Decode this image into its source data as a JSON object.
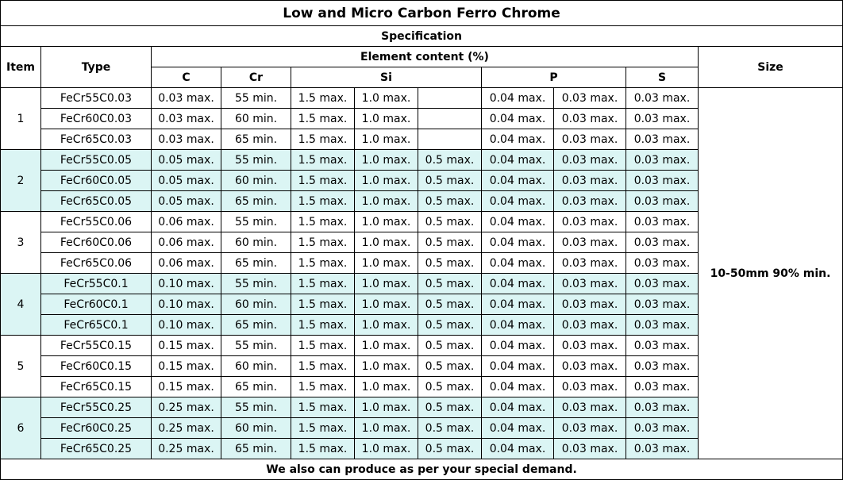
{
  "title": "Low and Micro Carbon Ferro Chrome",
  "specification_label": "Specification",
  "headers": {
    "item": "Item",
    "type": "Type",
    "element_content": "Element content (%)",
    "size": "Size",
    "c": "C",
    "cr": "Cr",
    "si": "Si",
    "p": "P",
    "s": "S"
  },
  "size_value": "10-50mm 90% min.",
  "footer": "We also can produce as per your special demand.",
  "shade_color": "#dbf5f4",
  "groups": [
    {
      "item": "1",
      "shaded": false,
      "rows": [
        {
          "type": "FeCr55C0.03",
          "c": "0.03 max.",
          "cr": "55 min.",
          "si1": "1.5 max.",
          "si2": "1.0 max.",
          "si3": "",
          "p1": "0.04 max.",
          "p2": "0.03 max.",
          "s": "0.03 max."
        },
        {
          "type": "FeCr60C0.03",
          "c": "0.03 max.",
          "cr": "60 min.",
          "si1": "1.5 max.",
          "si2": "1.0 max.",
          "si3": "",
          "p1": "0.04 max.",
          "p2": "0.03 max.",
          "s": "0.03 max."
        },
        {
          "type": "FeCr65C0.03",
          "c": "0.03 max.",
          "cr": "65 min.",
          "si1": "1.5 max.",
          "si2": "1.0 max.",
          "si3": "",
          "p1": "0.04 max.",
          "p2": "0.03 max.",
          "s": "0.03 max."
        }
      ]
    },
    {
      "item": "2",
      "shaded": true,
      "rows": [
        {
          "type": "FeCr55C0.05",
          "c": "0.05 max.",
          "cr": "55 min.",
          "si1": "1.5 max.",
          "si2": "1.0 max.",
          "si3": "0.5 max.",
          "p1": "0.04 max.",
          "p2": "0.03 max.",
          "s": "0.03 max."
        },
        {
          "type": "FeCr60C0.05",
          "c": "0.05 max.",
          "cr": "60 min.",
          "si1": "1.5 max.",
          "si2": "1.0 max.",
          "si3": "0.5 max.",
          "p1": "0.04 max.",
          "p2": "0.03 max.",
          "s": "0.03 max."
        },
        {
          "type": "FeCr65C0.05",
          "c": "0.05 max.",
          "cr": "65 min.",
          "si1": "1.5 max.",
          "si2": "1.0 max.",
          "si3": "0.5 max.",
          "p1": "0.04 max.",
          "p2": "0.03 max.",
          "s": "0.03 max."
        }
      ]
    },
    {
      "item": "3",
      "shaded": false,
      "rows": [
        {
          "type": "FeCr55C0.06",
          "c": "0.06 max.",
          "cr": "55 min.",
          "si1": "1.5 max.",
          "si2": "1.0 max.",
          "si3": "0.5 max.",
          "p1": "0.04 max.",
          "p2": "0.03 max.",
          "s": "0.03 max."
        },
        {
          "type": "FeCr60C0.06",
          "c": "0.06 max.",
          "cr": "60 min.",
          "si1": "1.5 max.",
          "si2": "1.0 max.",
          "si3": "0.5 max.",
          "p1": "0.04 max.",
          "p2": "0.03 max.",
          "s": "0.03 max."
        },
        {
          "type": "FeCr65C0.06",
          "c": "0.06 max.",
          "cr": "65 min.",
          "si1": "1.5 max.",
          "si2": "1.0 max.",
          "si3": "0.5 max.",
          "p1": "0.04 max.",
          "p2": "0.03 max.",
          "s": "0.03 max."
        }
      ]
    },
    {
      "item": "4",
      "shaded": true,
      "rows": [
        {
          "type": "FeCr55C0.1",
          "c": "0.10 max.",
          "cr": "55 min.",
          "si1": "1.5 max.",
          "si2": "1.0 max.",
          "si3": "0.5 max.",
          "p1": "0.04 max.",
          "p2": "0.03 max.",
          "s": "0.03 max."
        },
        {
          "type": "FeCr60C0.1",
          "c": "0.10 max.",
          "cr": "60 min.",
          "si1": "1.5 max.",
          "si2": "1.0 max.",
          "si3": "0.5 max.",
          "p1": "0.04 max.",
          "p2": "0.03 max.",
          "s": "0.03 max."
        },
        {
          "type": "FeCr65C0.1",
          "c": "0.10 max.",
          "cr": "65 min.",
          "si1": "1.5 max.",
          "si2": "1.0 max.",
          "si3": "0.5 max.",
          "p1": "0.04 max.",
          "p2": "0.03 max.",
          "s": "0.03 max."
        }
      ]
    },
    {
      "item": "5",
      "shaded": false,
      "rows": [
        {
          "type": "FeCr55C0.15",
          "c": "0.15 max.",
          "cr": "55 min.",
          "si1": "1.5 max.",
          "si2": "1.0 max.",
          "si3": "0.5 max.",
          "p1": "0.04 max.",
          "p2": "0.03 max.",
          "s": "0.03 max."
        },
        {
          "type": "FeCr60C0.15",
          "c": "0.15 max.",
          "cr": "60 min.",
          "si1": "1.5 max.",
          "si2": "1.0 max.",
          "si3": "0.5 max.",
          "p1": "0.04 max.",
          "p2": "0.03 max.",
          "s": "0.03 max."
        },
        {
          "type": "FeCr65C0.15",
          "c": "0.15 max.",
          "cr": "65 min.",
          "si1": "1.5 max.",
          "si2": "1.0 max.",
          "si3": "0.5 max.",
          "p1": "0.04 max.",
          "p2": "0.03 max.",
          "s": "0.03 max."
        }
      ]
    },
    {
      "item": "6",
      "shaded": true,
      "rows": [
        {
          "type": "FeCr55C0.25",
          "c": "0.25 max.",
          "cr": "55 min.",
          "si1": "1.5 max.",
          "si2": "1.0 max.",
          "si3": "0.5 max.",
          "p1": "0.04 max.",
          "p2": "0.03 max.",
          "s": "0.03 max."
        },
        {
          "type": "FeCr60C0.25",
          "c": "0.25 max.",
          "cr": "60 min.",
          "si1": "1.5 max.",
          "si2": "1.0 max.",
          "si3": "0.5 max.",
          "p1": "0.04 max.",
          "p2": "0.03 max.",
          "s": "0.03 max."
        },
        {
          "type": "FeCr65C0.25",
          "c": "0.25 max.",
          "cr": "65 min.",
          "si1": "1.5 max.",
          "si2": "1.0 max.",
          "si3": "0.5 max.",
          "p1": "0.04 max.",
          "p2": "0.03 max.",
          "s": "0.03 max."
        }
      ]
    }
  ]
}
